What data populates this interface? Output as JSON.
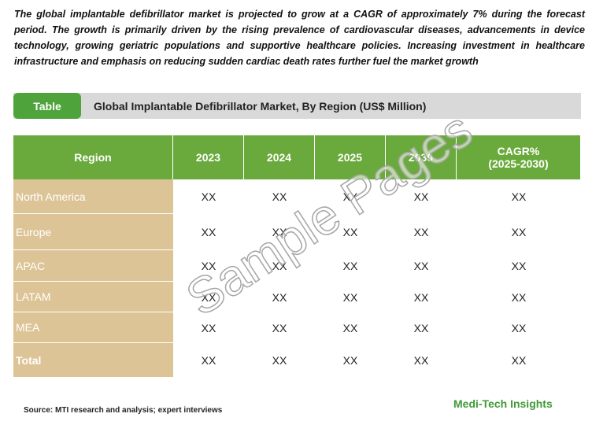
{
  "intro": "The global implantable defibrillator market is projected to grow at a CAGR of approximately 7% during the forecast period. The growth is primarily driven by the rising prevalence of cardiovascular diseases, advancements in device technology, growing geriatric populations and supportive healthcare policies. Increasing investment in healthcare infrastructure and emphasis on reducing sudden cardiac death rates further fuel the market growth",
  "table_tab": "Table",
  "table_title": "Global Implantable Defibrillator Market, By Region (US$ Million)",
  "table": {
    "headers": [
      "Region",
      "2023",
      "2024",
      "2025",
      "2030",
      "CAGR%\n(2025-2030)"
    ],
    "rows": [
      [
        "North America",
        "XX",
        "XX",
        "XX",
        "XX",
        "XX"
      ],
      [
        "Europe",
        "XX",
        "XX",
        "XX",
        "XX",
        "XX"
      ],
      [
        "APAC",
        "XX",
        "XX",
        "XX",
        "XX",
        "XX"
      ],
      [
        "LATAM",
        "XX",
        "XX",
        "XX",
        "XX",
        "XX"
      ],
      [
        "MEA",
        "XX",
        "XX",
        "XX",
        "XX",
        "XX"
      ],
      [
        "Total",
        "XX",
        "XX",
        "XX",
        "XX",
        "XX"
      ]
    ]
  },
  "source": "Source: MTI research and analysis; expert interviews",
  "brand": "Medi-Tech Insights",
  "watermark": "Sample Pages"
}
